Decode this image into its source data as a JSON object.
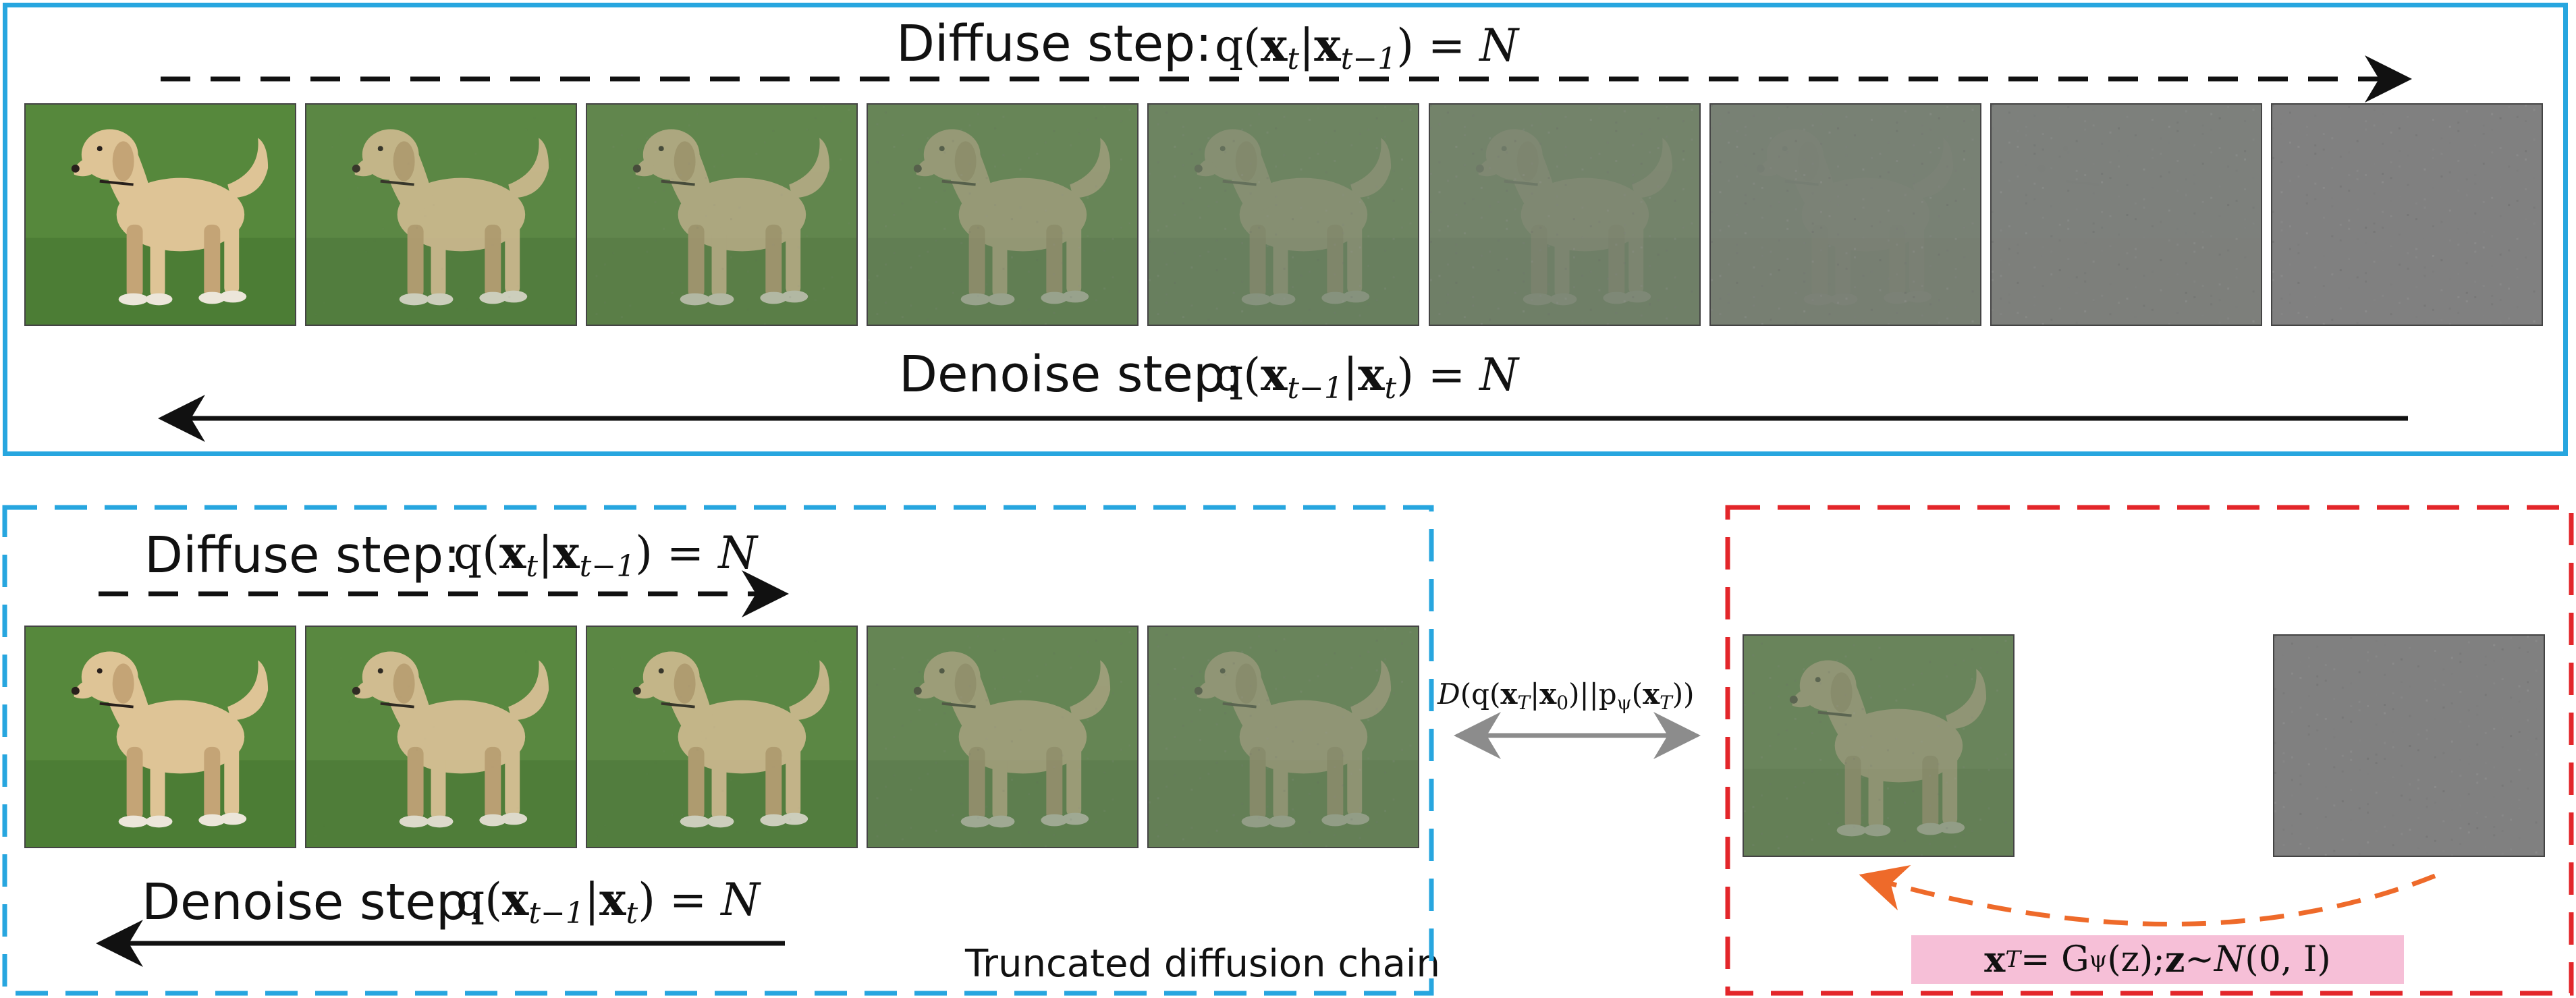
{
  "top_panel": {
    "diffuse_label": "Diffuse step:",
    "diffuse_eq": {
      "lhs": "q(",
      "x_t": "x",
      "t_sub": "t",
      "bar": "|",
      "x_prev": "x",
      "prev_sub": "t−1",
      "rhs": ") = ",
      "normal": "N"
    },
    "denoise_label": "Denoise step:",
    "denoise_eq": {
      "lhs": "q(",
      "x_prev": "x",
      "prev_sub": "t−1",
      "bar": "|",
      "x_t": "x",
      "t_sub": "t",
      "rhs": ") = ",
      "normal": "N"
    },
    "image_noise_levels": [
      0.0,
      0.12,
      0.25,
      0.4,
      0.55,
      0.68,
      0.82,
      0.94,
      1.0
    ]
  },
  "bottom_left_panel": {
    "diffuse_label": "Diffuse step:",
    "diffuse_eq": {
      "lhs": "q(",
      "x_t": "x",
      "t_sub": "t",
      "bar": "|",
      "x_prev": "x",
      "prev_sub": "t−1",
      "rhs": ") = ",
      "normal": "N"
    },
    "denoise_label": "Denoise step:",
    "denoise_eq": {
      "lhs": "q(",
      "x_prev": "x",
      "prev_sub": "t−1",
      "bar": "|",
      "x_t": "x",
      "t_sub": "t",
      "rhs": ") = ",
      "normal": "N"
    },
    "caption": "Truncated diffusion chain",
    "image_noise_levels": [
      0.0,
      0.06,
      0.12,
      0.35,
      0.45
    ]
  },
  "divergence": {
    "D": "D",
    "open": "(q(",
    "xT": "x",
    "T_sub": "T",
    "bar": "|",
    "x0": "x",
    "zero_sub": "0",
    "mid": ")||p",
    "psi_sub": "ψ",
    "open2": "(",
    "xT2": "x",
    "T_sub2": "T",
    "close": "))"
  },
  "bottom_right_panel": {
    "generator_eq": {
      "xT": "x",
      "T_sub": "T",
      "eq1": " = G",
      "psi_sub": "ψ",
      "arg": "(z);  ",
      "z": "z",
      "tilde": " ∼ ",
      "normal": "N",
      "params": "(0, I)"
    },
    "image_noise_levels": [
      0.45,
      1.0
    ]
  },
  "colors": {
    "blue": "#27a6df",
    "red": "#e3262a",
    "orange": "#ee6a2a",
    "gray_arrow": "#8c8c8c",
    "pink": "#f6bfd7"
  }
}
